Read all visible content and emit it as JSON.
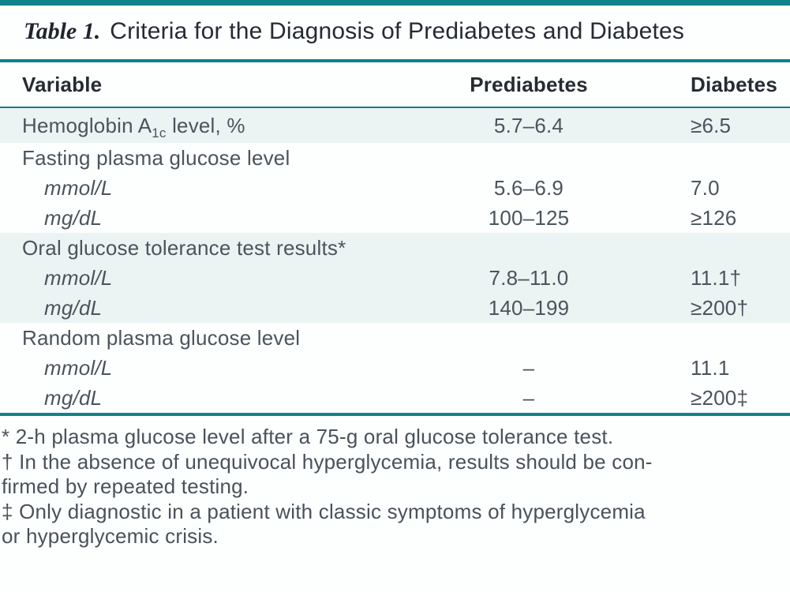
{
  "title": {
    "label": "Table 1.",
    "text": "Criteria for the Diagnosis of Prediabetes and Diabetes"
  },
  "table": {
    "headers": {
      "variable": "Variable",
      "prediabetes": "Prediabetes",
      "diabetes": "Diabetes"
    },
    "rows": [
      {
        "label_parts": [
          "Hemoglobin A",
          "1c",
          " level, %"
        ],
        "prediabetes": "5.7–6.4",
        "diabetes": "≥6.5"
      },
      {
        "label": "Fasting plasma glucose level",
        "prediabetes": "",
        "diabetes": ""
      },
      {
        "label": "mmol/L",
        "prediabetes": "5.6–6.9",
        "diabetes": "7.0"
      },
      {
        "label": "mg/dL",
        "prediabetes": "100–125",
        "diabetes": "≥126"
      },
      {
        "label": "Oral glucose tolerance test results*",
        "prediabetes": "",
        "diabetes": ""
      },
      {
        "label": "mmol/L",
        "prediabetes": "7.8–11.0",
        "diabetes": "11.1†"
      },
      {
        "label": "mg/dL",
        "prediabetes": "140–199",
        "diabetes": "≥200†"
      },
      {
        "label": "Random plasma glucose level",
        "prediabetes": "",
        "diabetes": ""
      },
      {
        "label": "mmol/L",
        "prediabetes": "–",
        "diabetes": "11.1"
      },
      {
        "label": "mg/dL",
        "prediabetes": "–",
        "diabetes": "≥200‡"
      }
    ]
  },
  "footnotes": [
    "* 2-h plasma glucose level after a 75-g oral glucose tolerance test.",
    "† In the absence of unequivocal hyperglycemia, results should be con-\nfirmed by repeated testing.",
    "‡ Only diagnostic in a patient with classic symptoms of hyperglycemia\nor hyperglycemic crisis."
  ],
  "colors": {
    "accent_teal": "#0f828a",
    "row_shade": "#ebf3f3",
    "heading_text": "#262b33",
    "body_text": "#4b545c"
  }
}
